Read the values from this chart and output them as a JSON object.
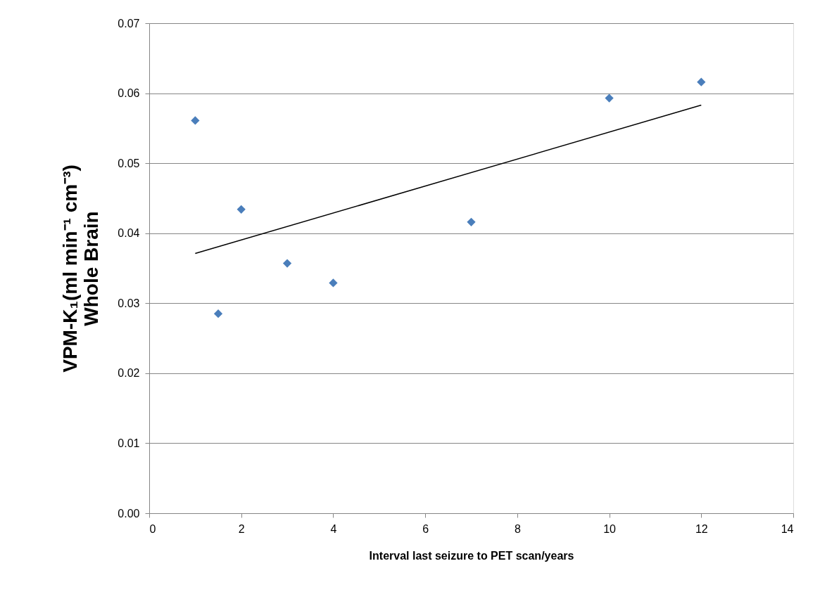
{
  "chart_data": {
    "type": "scatter",
    "xlabel": "Interval last seizure to PET scan/years",
    "ylabel": "VPM-K₁(ml min⁻¹ cm⁻³)\nWhole Brain",
    "xlim": [
      0,
      14
    ],
    "xticks": [
      0,
      2,
      4,
      6,
      8,
      10,
      12,
      14
    ],
    "ylim": [
      0,
      0.07
    ],
    "yticks": [
      {
        "value": 0,
        "label": "0.00"
      },
      {
        "value": 0.01,
        "label": "0.01"
      },
      {
        "value": 0.02,
        "label": "0.02"
      },
      {
        "value": 0.03,
        "label": "0.03"
      },
      {
        "value": 0.04,
        "label": "0.04"
      },
      {
        "value": 0.05,
        "label": "0.05"
      },
      {
        "value": 0.06,
        "label": "0.06"
      },
      {
        "value": 0.07,
        "label": "0.07"
      }
    ],
    "grid": "y",
    "series": [
      {
        "type": "scatter",
        "marker": "diamond",
        "color": "#4a7ebb",
        "x": [
          1,
          1.5,
          2,
          3,
          4,
          7,
          10,
          12
        ],
        "values": [
          0.0561,
          0.0285,
          0.0434,
          0.0357,
          0.0329,
          0.0416,
          0.0593,
          0.0616
        ]
      },
      {
        "type": "line",
        "marker": "none",
        "line_style": "solid",
        "color": "#000000",
        "x": [
          1,
          12
        ],
        "values": [
          0.0371,
          0.0583
        ]
      }
    ]
  }
}
